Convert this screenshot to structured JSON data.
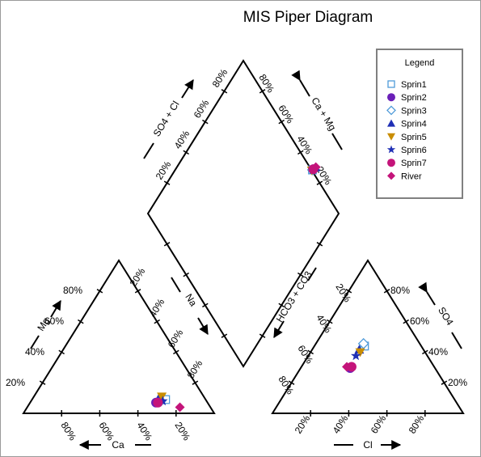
{
  "chart_data": {
    "type": "scatter",
    "title": "MIS Piper Diagram",
    "legend": {
      "title": "Legend",
      "placement": "top-right"
    },
    "tick_labels": [
      "20%",
      "40%",
      "60%",
      "80%"
    ],
    "axis_labels": {
      "mg": "Mg",
      "ca": "Ca",
      "na": "Na",
      "hco3_co3": "HCO3 + CO3",
      "cl": "Cl",
      "so4": "SO4",
      "so4_cl": "SO4 + Cl",
      "ca_mg": "Ca + Mg"
    },
    "series": [
      {
        "name": "Sprin1",
        "marker": "square-open",
        "color": "#4f9bd9",
        "cations": {
          "ca": 21,
          "mg": 9,
          "na_k": 70
        },
        "anions": {
          "cl": 69,
          "so4": 55,
          "hco3_co3": 0
        },
        "diamond": {
          "so4_cl": 19,
          "ca_mg": 25
        }
      },
      {
        "name": "Sprin2",
        "marker": "circle",
        "color": "#6a1fb8",
        "cations": {
          "ca": 27,
          "mg": 7,
          "na_k": 66
        },
        "anions": {
          "cl": 63,
          "so4": 37,
          "hco3_co3": 0
        },
        "diamond": {
          "so4_cl": 22,
          "ca_mg": 29
        }
      },
      {
        "name": "Sprin3",
        "marker": "diamond-open",
        "color": "#4f9bd9",
        "cations": {
          "ca": 24,
          "mg": 8,
          "na_k": 68
        },
        "anions": {
          "cl": 67,
          "so4": 57,
          "hco3_co3": 0
        },
        "diamond": {
          "so4_cl": 20,
          "ca_mg": 26
        }
      },
      {
        "name": "Sprin4",
        "marker": "triangle-up",
        "color": "#1f2fb5",
        "cations": {
          "ca": 24,
          "mg": 10,
          "na_k": 66
        },
        "anions": {
          "cl": 65,
          "so4": 52,
          "hco3_co3": 0
        },
        "diamond": {
          "so4_cl": 20,
          "ca_mg": 32
        }
      },
      {
        "name": "Sprin5",
        "marker": "triangle-down",
        "color": "#c98d00",
        "cations": {
          "ca": 22,
          "mg": 11,
          "na_k": 67
        },
        "anions": {
          "cl": 67,
          "so4": 50,
          "hco3_co3": 0
        },
        "diamond": {
          "so4_cl": 23,
          "ca_mg": 27
        }
      },
      {
        "name": "Sprin6",
        "marker": "star",
        "color": "#1f2fb5",
        "cations": {
          "ca": 23,
          "mg": 8,
          "na_k": 69
        },
        "anions": {
          "cl": 64,
          "so4": 47,
          "hco3_co3": 0
        },
        "diamond": {
          "so4_cl": 22,
          "ca_mg": 28
        }
      },
      {
        "name": "Sprin7",
        "marker": "circle",
        "color": "#c4147a",
        "cations": {
          "ca": 26,
          "mg": 7,
          "na_k": 67
        },
        "anions": {
          "cl": 64,
          "so4": 38,
          "hco3_co3": 0
        },
        "diamond": {
          "so4_cl": 22,
          "ca_mg": 29
        }
      },
      {
        "name": "River",
        "marker": "diamond",
        "color": "#c4147a",
        "cations": {
          "ca": 16,
          "mg": 4,
          "na_k": 80
        },
        "anions": {
          "cl": 59,
          "so4": 38,
          "hco3_co3": 3
        },
        "diamond": {
          "so4_cl": 19,
          "ca_mg": 32
        }
      }
    ]
  }
}
